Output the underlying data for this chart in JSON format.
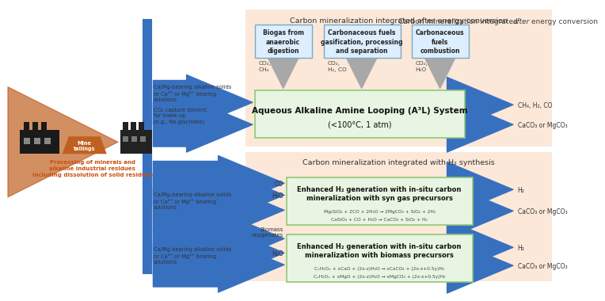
{
  "bg_color": "#ffffff",
  "salmon_bg": "#fce8d8",
  "green_box_color": "#e8f5e2",
  "green_box_edge": "#90c878",
  "blue_box_color": "#ddeeff",
  "blue_box_edge": "#7aaac8",
  "blue_arrow_color": "#3870c0",
  "gray_arrow_color": "#a8a8a8",
  "orange_text_color": "#c85010",
  "section1_title_normal": "Carbon mineralization integrated ",
  "section1_title_italic": "after",
  "section1_title_end": " energy conversion",
  "section2_title_normal": "Carbon mineralization integrated ",
  "section2_title_italic": "with",
  "section2_title_end": " H₂ synthesis",
  "box1_label1": "Biogas from\nanaerobic\ndigestion",
  "box1_label2": "Carbonaceous fuels\ngasification, processing\nand separation",
  "box1_label3": "Carbonaceous\nfuels\ncombustion",
  "box1_gas1": "CO₂,\nCH₄",
  "box1_gas2": "CO₂,\nH₂, CO",
  "box1_gas3": "CO₂,\nH₂O",
  "center_box1_line1": "Aqueous Alkaline Amine Looping (A³L) System",
  "center_box1_line2": "(<100°C, 1 atm)",
  "center_box2_title": "Enhanced H₂ generation with in-situ carbon\nmineralization with syn gas precursors",
  "center_box2_eq1": "Mg₂SiO₄ + 2CO + 2H₂O → 2MgCO₃ + SiO₂ + 2H₂",
  "center_box2_eq2": "CaSiO₃ + CO + H₂O → CaCO₃ + SiO₂ + H₂",
  "center_box3_title": "Enhanced H₂ generation with in-situ carbon\nmineralization with biomass precursors",
  "center_box3_eq1": "CₓH₂Oₓ + xCaO + (2x-z)H₂O → xCaCO₃ + (2x-z+0.5y)H₂",
  "center_box3_eq2": "CₓH₂Oₓ + xMgO + (2x-z)H₂O → xMgCO₃ + (2x-z+0.5y)H₂",
  "left_label1": "Ca/Mg-bearing alkaline solids\nor Ca²⁺ or Mg²⁺ bearing\nsolutions",
  "left_label2": "CO₂ capture solvent\nfor make-up\n(e.g., Na-glycinate)",
  "left_label3": "Ca/Mg-bearing alkaline solids\nor Ca²⁺ or Mg²⁺ bearing\nsolutions",
  "left_label4": "Ca/Mg-bearing alkaline solids\nor Ca²⁺ or Mg²⁺ bearing\nsolutions",
  "right_out1": "CH₄, H₂, CO",
  "right_out2": "CaCO₃ or MgCO₃",
  "right_out3": "H₂",
  "right_out4": "CaCO₃ or MgCO₃",
  "right_out5": "H₂",
  "right_out6": "CaCO₃ or MgCO₃",
  "mine_label": "Mine\ntailings",
  "process_label": "Processing of minerals and\nalkaline industrial residues\nincluding dissolution of solid residues"
}
